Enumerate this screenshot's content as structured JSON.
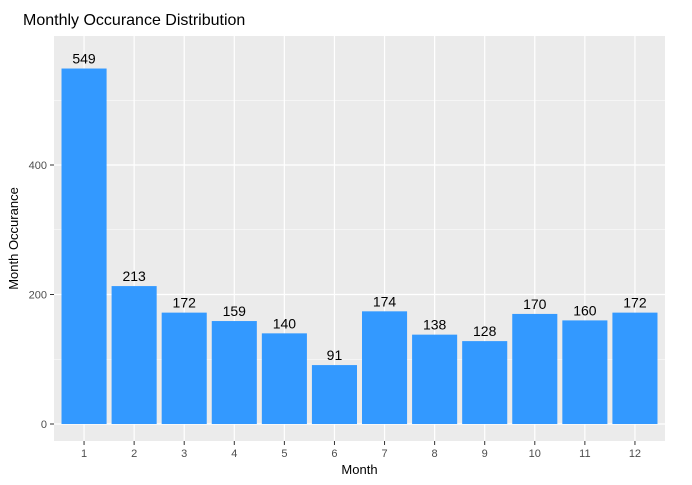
{
  "chart_data": {
    "type": "bar",
    "title": "Monthly Occurance Distribution",
    "xlabel": "Month",
    "ylabel": "Month Occurance",
    "categories": [
      "1",
      "2",
      "3",
      "4",
      "5",
      "6",
      "7",
      "8",
      "9",
      "10",
      "11",
      "12"
    ],
    "values": [
      549,
      213,
      172,
      159,
      140,
      91,
      174,
      138,
      128,
      170,
      160,
      172
    ],
    "ylim": [
      0,
      600
    ],
    "yticks": [
      0,
      200,
      400
    ],
    "grid": true,
    "colors": {
      "bar": "#3399FF",
      "panel": "#EBEBEB",
      "grid": "#FFFFFF"
    }
  }
}
